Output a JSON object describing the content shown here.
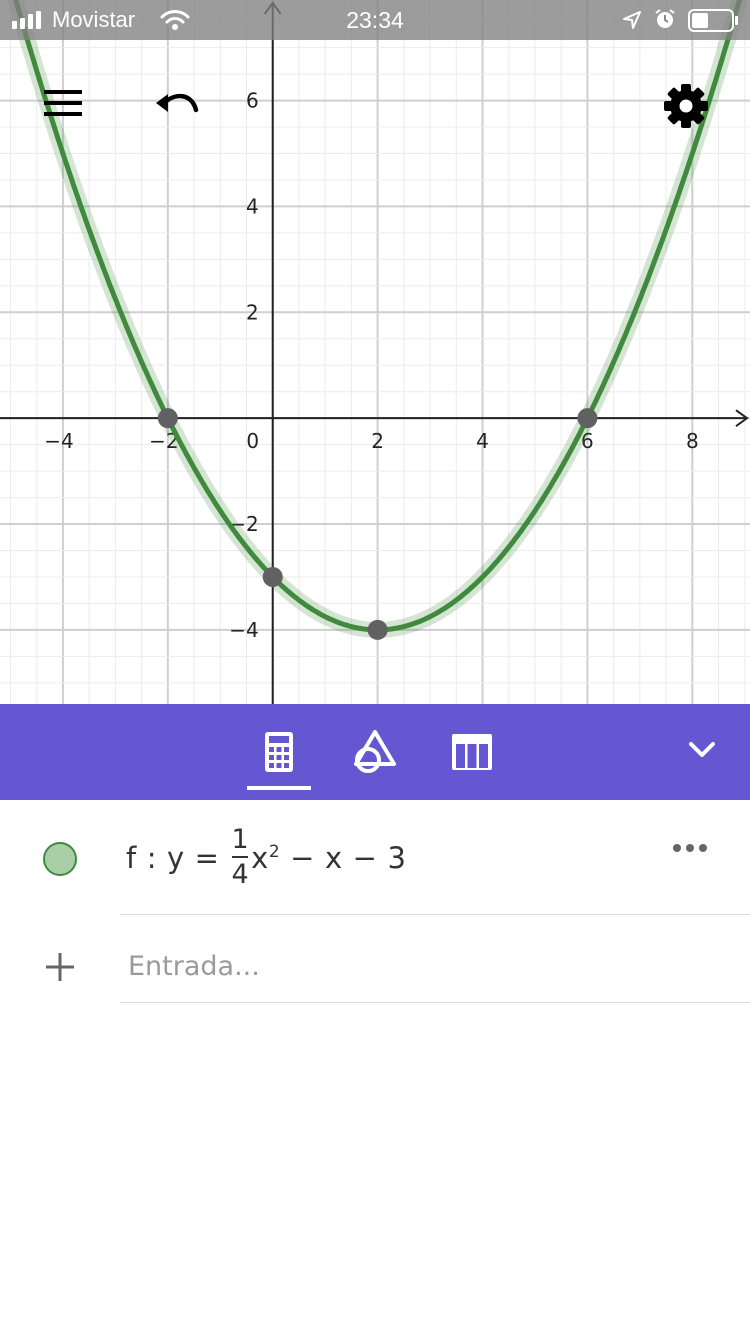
{
  "status_bar": {
    "carrier": "Movistar",
    "time": "23:34",
    "icons": [
      "signal-bars-icon",
      "wifi-icon",
      "location-arrow-icon",
      "alarm-clock-icon",
      "battery-icon"
    ]
  },
  "graph": {
    "x_ticks": [
      "−4",
      "−2",
      "0",
      "2",
      "4",
      "6",
      "8"
    ],
    "y_ticks": [
      "6",
      "4",
      "2",
      "−2",
      "−4"
    ],
    "curve_color": "#3f8a3c",
    "point_color": "#616161",
    "overlay_icons": [
      "menu-icon",
      "undo-icon",
      "gear-icon"
    ]
  },
  "chart_data": {
    "type": "line",
    "series": [
      {
        "name": "f",
        "function": "y = 1/4 x^2 - x - 3"
      }
    ],
    "points": [
      {
        "x": -2,
        "y": 0
      },
      {
        "x": 6,
        "y": 0
      },
      {
        "x": 0,
        "y": -3
      },
      {
        "x": 2,
        "y": -4
      }
    ],
    "xlim": [
      -5.2,
      9.1
    ],
    "ylim": [
      -5.4,
      7.9
    ],
    "grid": true
  },
  "toolbar": {
    "tabs": [
      "calculator-icon",
      "geometry-icon",
      "table-icon"
    ],
    "active_tab": "calculator-icon",
    "collapse_icon": "chevron-down-icon",
    "color": "#6557d2"
  },
  "algebra": {
    "function_name": "f",
    "colon": ":",
    "lhs": "y",
    "equals": "=",
    "frac_num": "1",
    "frac_den": "4",
    "var": "x",
    "exponent": "2",
    "minus": "−",
    "term2": "x",
    "constant": "3",
    "input_placeholder": "Entrada..."
  }
}
